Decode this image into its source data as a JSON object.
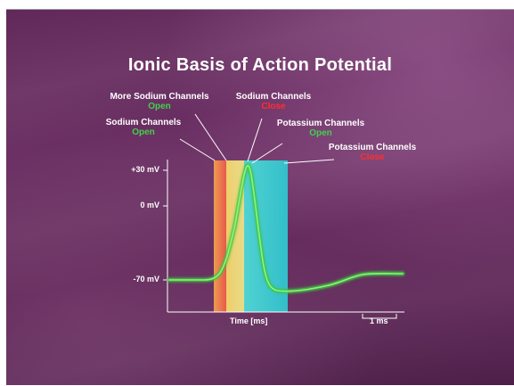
{
  "title": "Ionic Basis of Action Potential",
  "labels": {
    "more_na_open": {
      "line1": "More Sodium Channels",
      "line2": "Open"
    },
    "na_open": {
      "line1": "Sodium Channels",
      "line2": "Open"
    },
    "na_close": {
      "line1": "Sodium Channels",
      "line2": "Close"
    },
    "k_open": {
      "line1": "Potassium Channels",
      "line2": "Open"
    },
    "k_close": {
      "line1": "Potassium Channels",
      "line2": "Close"
    }
  },
  "y_ticks": [
    "+30 mV",
    "0 mV",
    "-70 mV"
  ],
  "x_label": "Time [ms]",
  "scale_bar": "1 ms",
  "colors": {
    "trace": "#52d94a",
    "band_orange": "#f47a4a",
    "band_yellow": "#f2e27a",
    "band_cyan": "#3fd3d6",
    "open_text": "#3fd24a",
    "close_text": "#ff2e2e"
  }
}
